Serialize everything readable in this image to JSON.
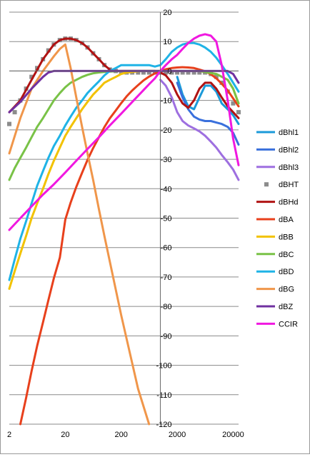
{
  "chart_data": {
    "type": "line",
    "title": "",
    "xlabel": "",
    "ylabel": "",
    "x_scale": "log10",
    "xlim": [
      2,
      25000
    ],
    "ylim": [
      -120,
      20
    ],
    "x_tick_labels": [
      "2",
      "20",
      "200",
      "2000",
      "20000"
    ],
    "x_tick_values": [
      2,
      20,
      200,
      2000,
      20000
    ],
    "y_tick_values": [
      20,
      10,
      0,
      -10,
      -20,
      -30,
      -40,
      -50,
      -60,
      -70,
      -80,
      -90,
      -100,
      -110,
      -120
    ],
    "grid": "horizontal",
    "legend_position": "right",
    "series": [
      {
        "name": "dBhl1",
        "color": "#1b9ad9",
        "style": "line",
        "x": [
          2000,
          2500,
          3150,
          4000,
          5000,
          6300,
          8000,
          10000,
          12500,
          16000,
          20000,
          25000
        ],
        "y": [
          -2,
          -8,
          -12,
          -13,
          -9,
          -5,
          -5,
          -7,
          -11,
          -13,
          -15,
          -18
        ]
      },
      {
        "name": "dBhl2",
        "color": "#3a70dc",
        "style": "line",
        "x": [
          2000,
          2500,
          3150,
          4000,
          5000,
          6300,
          8000,
          10000,
          12500,
          16000,
          20000,
          25000
        ],
        "y": [
          -4,
          -9,
          -13,
          -15.5,
          -16.5,
          -17,
          -17,
          -17.5,
          -18,
          -19,
          -21,
          -25
        ]
      },
      {
        "name": "dBhl3",
        "color": "#9e6fe0",
        "style": "line",
        "x": [
          1000,
          1250,
          1600,
          2000,
          2500,
          3150,
          4000,
          5000,
          6300,
          8000,
          10000,
          12500,
          16000,
          20000,
          25000
        ],
        "y": [
          -3,
          -5,
          -9,
          -14,
          -17,
          -18.5,
          -19.5,
          -20.5,
          -22,
          -24,
          -26,
          -28.5,
          -31,
          -33.5,
          -37
        ]
      },
      {
        "name": "dBHT",
        "color": "#8c8c8c",
        "style": "markers",
        "x": [
          2,
          2.5,
          3.15,
          4,
          5,
          6.3,
          8,
          10,
          12.5,
          16,
          20,
          25,
          31.5,
          40,
          50,
          63,
          80,
          100,
          125,
          160,
          200,
          250,
          315,
          400,
          500,
          630,
          800,
          1000,
          1250,
          1600,
          2000,
          2500,
          3150,
          4000,
          5000,
          6300,
          8000,
          10000,
          12500,
          16000,
          20000,
          25000
        ],
        "y": [
          -18,
          -14,
          -10,
          -6,
          -2,
          1,
          4,
          7,
          9,
          10.5,
          11,
          11,
          10.5,
          9.5,
          8,
          6,
          4,
          2,
          0.5,
          0,
          -0.5,
          -0.5,
          -0.5,
          -0.5,
          -0.5,
          -0.5,
          -0.5,
          -0.5,
          -0.5,
          -0.5,
          -0.5,
          -0.5,
          -0.5,
          -0.5,
          -0.5,
          -0.5,
          -1,
          -2,
          -4,
          -7,
          -11,
          -14
        ]
      },
      {
        "name": "dBHd",
        "color": "#b01313",
        "style": "line",
        "x": [
          2,
          3.15,
          5,
          8,
          12.5,
          16,
          20,
          25,
          31.5,
          40,
          50,
          63,
          80,
          100,
          125,
          160,
          200,
          315,
          500,
          800,
          1000,
          1250,
          1600,
          2000,
          2500,
          3150,
          4000,
          5000,
          6300,
          8000,
          10000,
          12500,
          16000,
          20000,
          25000
        ],
        "y": [
          -14,
          -10,
          -3,
          4,
          9,
          10.5,
          11,
          11,
          10.5,
          9.5,
          8,
          6,
          4,
          2,
          0.5,
          0,
          0,
          0,
          0,
          0,
          -0.5,
          -1.5,
          -4,
          -8,
          -11,
          -12.5,
          -10,
          -6,
          -4,
          -4,
          -6,
          -9,
          -12,
          -14,
          -16
        ]
      },
      {
        "name": "dBA",
        "color": "#e8401c",
        "style": "line",
        "x": [
          3.15,
          4,
          5,
          6.3,
          8,
          10,
          12.5,
          16,
          20,
          25,
          31.5,
          40,
          50,
          63,
          80,
          100,
          125,
          160,
          200,
          250,
          315,
          400,
          500,
          630,
          800,
          1000,
          1250,
          1600,
          2000,
          2500,
          3150,
          4000,
          5000,
          6300,
          8000,
          10000,
          12500,
          16000,
          20000,
          25000
        ],
        "y": [
          -120,
          -111,
          -102,
          -93.4,
          -85.4,
          -77.8,
          -70.4,
          -63.4,
          -50.5,
          -44.7,
          -39.4,
          -34.6,
          -30.2,
          -26.2,
          -22.5,
          -19.1,
          -16.1,
          -13.4,
          -10.9,
          -8.6,
          -6.6,
          -4.8,
          -3.2,
          -1.9,
          -0.8,
          0,
          0.6,
          1,
          1.2,
          1.3,
          1.2,
          1,
          0.5,
          -0.1,
          -1.1,
          -2.5,
          -4.3,
          -6.6,
          -9.3,
          -12
        ]
      },
      {
        "name": "dBB",
        "color": "#f2c200",
        "style": "line",
        "x": [
          2,
          2.5,
          3.15,
          4,
          5,
          6.3,
          8,
          10,
          12.5,
          16,
          20,
          25,
          31.5,
          40,
          50,
          63,
          80,
          100,
          125,
          160,
          200,
          250,
          315,
          400,
          500,
          1000,
          2000,
          5000,
          10000,
          16000,
          20000,
          25000
        ],
        "y": [
          -74,
          -68,
          -62,
          -56,
          -50,
          -45,
          -40,
          -35,
          -30.5,
          -26,
          -22,
          -19,
          -16,
          -13,
          -10.5,
          -8,
          -6,
          -4,
          -3,
          -2,
          -1,
          -0.5,
          -0.3,
          -0.1,
          0,
          0,
          0,
          0,
          -1,
          -3,
          -6,
          -11
        ]
      },
      {
        "name": "dBC",
        "color": "#79c247",
        "style": "line",
        "x": [
          2,
          2.5,
          3.15,
          4,
          5,
          6.3,
          8,
          10,
          12.5,
          16,
          20,
          25,
          31.5,
          40,
          50,
          63,
          80,
          100,
          125,
          160,
          200,
          250,
          315,
          400,
          500,
          1000,
          2000,
          5000,
          10000,
          16000,
          20000,
          25000
        ],
        "y": [
          -37,
          -33,
          -29.5,
          -26,
          -22.5,
          -19,
          -16,
          -13,
          -10,
          -7.5,
          -5.5,
          -4,
          -3,
          -2,
          -1.3,
          -0.8,
          -0.5,
          -0.3,
          -0.2,
          -0.1,
          0,
          0,
          0,
          0,
          0,
          0,
          0,
          0,
          -1,
          -3,
          -6,
          -11
        ]
      },
      {
        "name": "dBD",
        "color": "#1fb3e6",
        "style": "line",
        "x": [
          2,
          2.5,
          3.15,
          4,
          5,
          6.3,
          8,
          10,
          12.5,
          16,
          20,
          25,
          31.5,
          40,
          50,
          63,
          80,
          100,
          125,
          160,
          200,
          250,
          315,
          400,
          500,
          630,
          800,
          1000,
          1250,
          1600,
          2000,
          2500,
          3150,
          4000,
          5000,
          6300,
          8000,
          10000,
          12500,
          16000,
          20000,
          25000
        ],
        "y": [
          -71,
          -64,
          -57,
          -51,
          -45,
          -39,
          -34,
          -29.5,
          -25.5,
          -22,
          -18.5,
          -15.5,
          -12.5,
          -10,
          -7.5,
          -5.5,
          -3.5,
          -1.5,
          0,
          1,
          2,
          2,
          2,
          2,
          2,
          2,
          1.5,
          2,
          4,
          6.5,
          8,
          9,
          9.5,
          9.5,
          9,
          8,
          6.5,
          4.5,
          2,
          -1,
          -4,
          -7
        ]
      },
      {
        "name": "dBG",
        "color": "#f0964a",
        "style": "line",
        "x": [
          2,
          3.15,
          5,
          8,
          12.5,
          16,
          20,
          25,
          31.5,
          40,
          50,
          63,
          80,
          100,
          200,
          400,
          630
        ],
        "y": [
          -28,
          -16,
          -6,
          0,
          5,
          7.5,
          9,
          1,
          -9,
          -19,
          -28,
          -37,
          -47,
          -56,
          -83,
          -108,
          -120
        ]
      },
      {
        "name": "dBZ",
        "color": "#7030a0",
        "style": "line",
        "x": [
          2,
          3.15,
          5,
          8,
          10,
          12.5,
          16,
          25,
          50,
          100,
          200,
          500,
          1000,
          2000,
          5000,
          10000,
          16000,
          20000,
          25000
        ],
        "y": [
          -14,
          -10.5,
          -6,
          -2,
          -0.5,
          0,
          0,
          0,
          0,
          0,
          0,
          0,
          0,
          0,
          0,
          0,
          0,
          -1,
          -4
        ]
      },
      {
        "name": "CCIR",
        "color": "#f018e0",
        "style": "line",
        "x": [
          2,
          3.15,
          5,
          8,
          12.5,
          20,
          31.5,
          50,
          80,
          125,
          200,
          315,
          500,
          630,
          800,
          1000,
          1250,
          1600,
          2000,
          2500,
          3150,
          4000,
          5000,
          6300,
          8000,
          10000,
          12500,
          16000,
          20000,
          25000
        ],
        "y": [
          -54,
          -50,
          -46,
          -42,
          -38.5,
          -34.5,
          -30.5,
          -26.5,
          -22.5,
          -18.5,
          -14.5,
          -10.5,
          -6.5,
          -4.5,
          -2.5,
          0,
          2,
          4,
          5.5,
          7.5,
          9.5,
          11,
          12,
          12.5,
          12,
          10,
          2,
          -10,
          -23,
          -32
        ]
      }
    ]
  }
}
